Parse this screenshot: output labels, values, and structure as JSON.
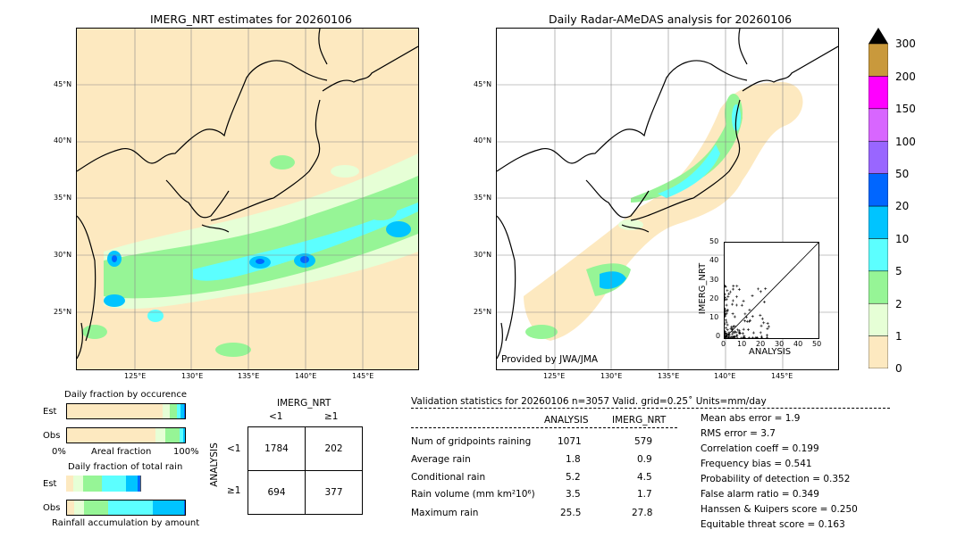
{
  "left_map": {
    "title": "IMERG_NRT estimates for 20260106",
    "lat_labels": [
      "45°N",
      "40°N",
      "35°N",
      "30°N",
      "25°N"
    ],
    "lon_labels": [
      "125°E",
      "130°E",
      "135°E",
      "140°E",
      "145°E"
    ]
  },
  "right_map": {
    "title": "Daily Radar-AMeDAS analysis for 20260106",
    "lat_labels": [
      "45°N",
      "40°N",
      "35°N",
      "30°N",
      "25°N"
    ],
    "lon_labels": [
      "125°E",
      "130°E",
      "135°E",
      "140°E",
      "145°E"
    ],
    "credit": "Provided by JWA/JMA"
  },
  "colorbar": {
    "levels": [
      "0",
      "1",
      "2",
      "5",
      "10",
      "20",
      "50",
      "100",
      "150",
      "200",
      "300"
    ],
    "colors": [
      "#fde9c0",
      "#e6ffd6",
      "#96f596",
      "#5cffff",
      "#00c4ff",
      "#0066ff",
      "#9966ff",
      "#d866ff",
      "#ff00ff",
      "#c9993c"
    ]
  },
  "scatter": {
    "xlabel": "ANALYSIS",
    "ylabel": "IMERG_NRT",
    "ticks": [
      "0",
      "10",
      "20",
      "30",
      "40",
      "50"
    ]
  },
  "fraction_occ": {
    "title": "Daily fraction by occurence",
    "rows": [
      "Est",
      "Obs"
    ],
    "axis_left": "0%",
    "axis_mid": "Areal fraction",
    "axis_right": "100%"
  },
  "fraction_rain": {
    "title": "Daily fraction of total rain",
    "rows": [
      "Est",
      "Obs"
    ],
    "footer": "Rainfall accumulation by amount"
  },
  "contingency": {
    "header": "IMERG_NRT",
    "col_labels": [
      "<1",
      "≥1"
    ],
    "row_axis": "ANALYSIS",
    "row_labels": [
      "<1",
      "≥1"
    ],
    "cells": [
      [
        "1784",
        "202"
      ],
      [
        "694",
        "377"
      ]
    ]
  },
  "validation": {
    "header": "Validation statistics for 20260106  n=3057 Valid. grid=0.25˚ Units=mm/day",
    "col_analysis": "ANALYSIS",
    "col_imerg": "IMERG_NRT",
    "rows": [
      {
        "label": "Num of gridpoints raining",
        "analysis": "1071",
        "imerg": "579"
      },
      {
        "label": "Average rain",
        "analysis": "1.8",
        "imerg": "0.9"
      },
      {
        "label": "Conditional rain",
        "analysis": "5.2",
        "imerg": "4.5"
      },
      {
        "label": "Rain volume (mm km²10⁶)",
        "analysis": "3.5",
        "imerg": "1.7"
      },
      {
        "label": "Maximum rain",
        "analysis": "25.5",
        "imerg": "27.8"
      }
    ],
    "scores": [
      "Mean abs error =    1.9",
      "RMS error =    3.7",
      "Correlation coeff =  0.199",
      "Frequency bias =  0.541",
      "Probability of detection =  0.352",
      "False alarm ratio =  0.349",
      "Hanssen & Kuipers score =  0.250",
      "Equitable threat score =  0.163"
    ]
  },
  "chart_data": [
    {
      "type": "bar",
      "title": "Daily fraction by occurence",
      "categories": [
        "Est",
        "Obs"
      ],
      "series": [
        {
          "values": [
            0.8,
            0.74
          ]
        },
        {
          "values": [
            0.06,
            0.08
          ]
        },
        {
          "values": [
            0.06,
            0.12
          ]
        },
        {
          "values": [
            0.03,
            0.03
          ]
        },
        {
          "values": [
            0.03,
            0.02
          ]
        },
        {
          "values": [
            0.02,
            0.01
          ]
        }
      ]
    },
    {
      "type": "bar",
      "title": "Daily fraction of total rain",
      "categories": [
        "Est",
        "Obs"
      ],
      "series": [
        {
          "values": [
            0.06,
            0.06
          ]
        },
        {
          "values": [
            0.08,
            0.08
          ]
        },
        {
          "values": [
            0.16,
            0.2
          ]
        },
        {
          "values": [
            0.2,
            0.38
          ]
        },
        {
          "values": [
            0.1,
            0.26
          ]
        },
        {
          "values": [
            0.02,
            0.04
          ]
        }
      ]
    },
    {
      "type": "scatter",
      "title": "",
      "xlabel": "ANALYSIS",
      "ylabel": "IMERG_NRT",
      "xlim": [
        0,
        50
      ],
      "ylim": [
        0,
        50
      ]
    }
  ]
}
